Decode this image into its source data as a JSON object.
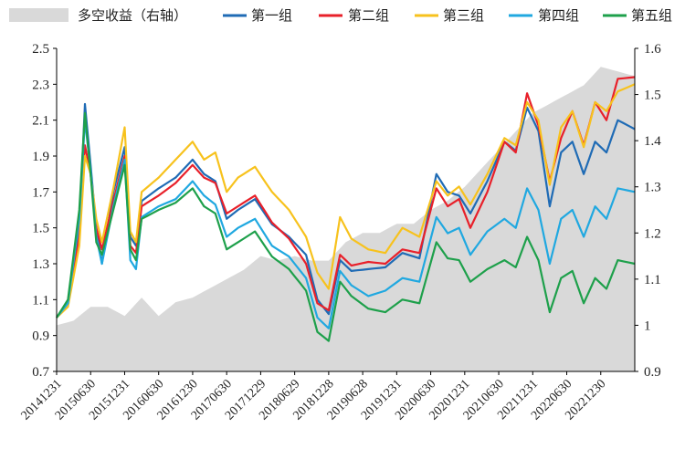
{
  "chart_data": {
    "type": "line",
    "legend": {
      "position": "top",
      "items": [
        {
          "label": "多空收益（右轴）",
          "color": "#d9d9d9",
          "kind": "area"
        },
        {
          "label": "第一组",
          "color": "#1f6bb5",
          "kind": "line"
        },
        {
          "label": "第二组",
          "color": "#e8202a",
          "kind": "line"
        },
        {
          "label": "第三组",
          "color": "#f7c21d",
          "kind": "line"
        },
        {
          "label": "第四组",
          "color": "#20a8e0",
          "kind": "line"
        },
        {
          "label": "第五组",
          "color": "#1ea04b",
          "kind": "line"
        }
      ]
    },
    "y_left": {
      "min": 0.7,
      "max": 2.5,
      "ticks": [
        "0.7",
        "0.9",
        "1.1",
        "1.3",
        "1.5",
        "1.7",
        "1.9",
        "2.1",
        "2.3",
        "2.5"
      ]
    },
    "y_right": {
      "min": 0.9,
      "max": 1.6,
      "ticks": [
        "0.9",
        "1",
        "1.1",
        "1.2",
        "1.3",
        "1.4",
        "1.5",
        "1.6"
      ]
    },
    "x_ticks": [
      {
        "label": "20141231",
        "idx": 0
      },
      {
        "label": "20150630",
        "idx": 6
      },
      {
        "label": "20151231",
        "idx": 12
      },
      {
        "label": "20160630",
        "idx": 18
      },
      {
        "label": "20161230",
        "idx": 24
      },
      {
        "label": "20170630",
        "idx": 30
      },
      {
        "label": "20171229",
        "idx": 36
      },
      {
        "label": "20180629",
        "idx": 42
      },
      {
        "label": "20181228",
        "idx": 48
      },
      {
        "label": "20190628",
        "idx": 54
      },
      {
        "label": "20191231",
        "idx": 60
      },
      {
        "label": "20200630",
        "idx": 66
      },
      {
        "label": "20201231",
        "idx": 72
      },
      {
        "label": "20210630",
        "idx": 78
      },
      {
        "label": "20211231",
        "idx": 84
      },
      {
        "label": "20220630",
        "idx": 90
      },
      {
        "label": "20221230",
        "idx": 96
      }
    ],
    "n_points": 103,
    "area": {
      "name": "多空收益（右轴）",
      "color": "#d9d9d9",
      "anchors": [
        [
          0,
          1.0
        ],
        [
          3,
          1.01
        ],
        [
          6,
          1.04
        ],
        [
          9,
          1.04
        ],
        [
          12,
          1.02
        ],
        [
          15,
          1.06
        ],
        [
          18,
          1.02
        ],
        [
          21,
          1.05
        ],
        [
          24,
          1.06
        ],
        [
          27,
          1.08
        ],
        [
          30,
          1.1
        ],
        [
          33,
          1.12
        ],
        [
          36,
          1.15
        ],
        [
          39,
          1.14
        ],
        [
          42,
          1.15
        ],
        [
          45,
          1.14
        ],
        [
          48,
          1.14
        ],
        [
          51,
          1.18
        ],
        [
          54,
          1.2
        ],
        [
          57,
          1.2
        ],
        [
          60,
          1.22
        ],
        [
          63,
          1.22
        ],
        [
          66,
          1.25
        ],
        [
          69,
          1.27
        ],
        [
          72,
          1.3
        ],
        [
          75,
          1.34
        ],
        [
          78,
          1.38
        ],
        [
          81,
          1.42
        ],
        [
          84,
          1.46
        ],
        [
          87,
          1.48
        ],
        [
          90,
          1.5
        ],
        [
          93,
          1.52
        ],
        [
          96,
          1.56
        ],
        [
          99,
          1.55
        ],
        [
          102,
          1.54
        ]
      ]
    },
    "series": [
      {
        "name": "第一组",
        "color": "#1f6bb5",
        "anchors": [
          [
            0,
            1.0
          ],
          [
            2,
            1.08
          ],
          [
            4,
            1.5
          ],
          [
            5,
            2.19
          ],
          [
            6,
            1.85
          ],
          [
            7,
            1.5
          ],
          [
            8,
            1.3
          ],
          [
            10,
            1.7
          ],
          [
            12,
            1.95
          ],
          [
            13,
            1.45
          ],
          [
            14,
            1.4
          ],
          [
            15,
            1.65
          ],
          [
            18,
            1.72
          ],
          [
            21,
            1.78
          ],
          [
            24,
            1.88
          ],
          [
            26,
            1.8
          ],
          [
            28,
            1.76
          ],
          [
            30,
            1.55
          ],
          [
            32,
            1.6
          ],
          [
            35,
            1.66
          ],
          [
            38,
            1.52
          ],
          [
            41,
            1.45
          ],
          [
            44,
            1.35
          ],
          [
            46,
            1.1
          ],
          [
            48,
            1.02
          ],
          [
            50,
            1.32
          ],
          [
            52,
            1.26
          ],
          [
            55,
            1.27
          ],
          [
            58,
            1.28
          ],
          [
            61,
            1.36
          ],
          [
            64,
            1.33
          ],
          [
            67,
            1.8
          ],
          [
            69,
            1.7
          ],
          [
            71,
            1.68
          ],
          [
            73,
            1.58
          ],
          [
            76,
            1.76
          ],
          [
            79,
            1.98
          ],
          [
            81,
            1.93
          ],
          [
            83,
            2.17
          ],
          [
            85,
            2.04
          ],
          [
            87,
            1.62
          ],
          [
            89,
            1.92
          ],
          [
            91,
            1.98
          ],
          [
            93,
            1.8
          ],
          [
            95,
            1.98
          ],
          [
            97,
            1.92
          ],
          [
            99,
            2.1
          ],
          [
            102,
            2.05
          ]
        ]
      },
      {
        "name": "第二组",
        "color": "#e8202a",
        "anchors": [
          [
            0,
            1.0
          ],
          [
            2,
            1.08
          ],
          [
            4,
            1.45
          ],
          [
            5,
            1.96
          ],
          [
            6,
            1.8
          ],
          [
            7,
            1.5
          ],
          [
            8,
            1.38
          ],
          [
            10,
            1.65
          ],
          [
            12,
            1.9
          ],
          [
            13,
            1.4
          ],
          [
            14,
            1.36
          ],
          [
            15,
            1.62
          ],
          [
            18,
            1.68
          ],
          [
            21,
            1.75
          ],
          [
            24,
            1.85
          ],
          [
            26,
            1.78
          ],
          [
            28,
            1.75
          ],
          [
            30,
            1.58
          ],
          [
            32,
            1.62
          ],
          [
            35,
            1.68
          ],
          [
            38,
            1.53
          ],
          [
            41,
            1.44
          ],
          [
            44,
            1.3
          ],
          [
            46,
            1.08
          ],
          [
            48,
            1.04
          ],
          [
            50,
            1.35
          ],
          [
            52,
            1.29
          ],
          [
            55,
            1.31
          ],
          [
            58,
            1.3
          ],
          [
            61,
            1.38
          ],
          [
            64,
            1.36
          ],
          [
            67,
            1.72
          ],
          [
            69,
            1.62
          ],
          [
            71,
            1.66
          ],
          [
            73,
            1.5
          ],
          [
            76,
            1.7
          ],
          [
            79,
            1.98
          ],
          [
            81,
            1.92
          ],
          [
            83,
            2.25
          ],
          [
            85,
            2.07
          ],
          [
            87,
            1.76
          ],
          [
            89,
            2.0
          ],
          [
            91,
            2.15
          ],
          [
            93,
            1.96
          ],
          [
            95,
            2.2
          ],
          [
            97,
            2.1
          ],
          [
            99,
            2.33
          ],
          [
            102,
            2.34
          ]
        ]
      },
      {
        "name": "第三组",
        "color": "#f7c21d",
        "anchors": [
          [
            0,
            1.0
          ],
          [
            2,
            1.06
          ],
          [
            4,
            1.4
          ],
          [
            5,
            1.9
          ],
          [
            6,
            1.8
          ],
          [
            7,
            1.55
          ],
          [
            8,
            1.42
          ],
          [
            10,
            1.72
          ],
          [
            12,
            2.06
          ],
          [
            13,
            1.48
          ],
          [
            14,
            1.42
          ],
          [
            15,
            1.7
          ],
          [
            18,
            1.78
          ],
          [
            21,
            1.88
          ],
          [
            24,
            1.98
          ],
          [
            26,
            1.88
          ],
          [
            28,
            1.92
          ],
          [
            30,
            1.7
          ],
          [
            32,
            1.78
          ],
          [
            35,
            1.84
          ],
          [
            38,
            1.7
          ],
          [
            41,
            1.6
          ],
          [
            44,
            1.45
          ],
          [
            46,
            1.25
          ],
          [
            48,
            1.16
          ],
          [
            50,
            1.56
          ],
          [
            52,
            1.44
          ],
          [
            55,
            1.38
          ],
          [
            58,
            1.36
          ],
          [
            61,
            1.5
          ],
          [
            64,
            1.45
          ],
          [
            67,
            1.76
          ],
          [
            69,
            1.68
          ],
          [
            71,
            1.73
          ],
          [
            73,
            1.63
          ],
          [
            76,
            1.8
          ],
          [
            79,
            2.0
          ],
          [
            81,
            1.96
          ],
          [
            83,
            2.2
          ],
          [
            85,
            2.1
          ],
          [
            87,
            1.74
          ],
          [
            89,
            2.06
          ],
          [
            91,
            2.15
          ],
          [
            93,
            1.95
          ],
          [
            95,
            2.2
          ],
          [
            97,
            2.15
          ],
          [
            99,
            2.26
          ],
          [
            102,
            2.3
          ]
        ]
      },
      {
        "name": "第四组",
        "color": "#20a8e0",
        "anchors": [
          [
            0,
            1.0
          ],
          [
            2,
            1.08
          ],
          [
            4,
            1.55
          ],
          [
            5,
            2.1
          ],
          [
            6,
            1.82
          ],
          [
            7,
            1.45
          ],
          [
            8,
            1.3
          ],
          [
            10,
            1.62
          ],
          [
            12,
            1.88
          ],
          [
            13,
            1.32
          ],
          [
            14,
            1.27
          ],
          [
            15,
            1.56
          ],
          [
            18,
            1.62
          ],
          [
            21,
            1.66
          ],
          [
            24,
            1.76
          ],
          [
            26,
            1.68
          ],
          [
            28,
            1.63
          ],
          [
            30,
            1.45
          ],
          [
            32,
            1.5
          ],
          [
            35,
            1.55
          ],
          [
            38,
            1.4
          ],
          [
            41,
            1.34
          ],
          [
            44,
            1.22
          ],
          [
            46,
            1.0
          ],
          [
            48,
            0.94
          ],
          [
            50,
            1.26
          ],
          [
            52,
            1.18
          ],
          [
            55,
            1.12
          ],
          [
            58,
            1.15
          ],
          [
            61,
            1.22
          ],
          [
            64,
            1.2
          ],
          [
            67,
            1.56
          ],
          [
            69,
            1.47
          ],
          [
            71,
            1.5
          ],
          [
            73,
            1.35
          ],
          [
            76,
            1.48
          ],
          [
            79,
            1.55
          ],
          [
            81,
            1.5
          ],
          [
            83,
            1.72
          ],
          [
            85,
            1.6
          ],
          [
            87,
            1.3
          ],
          [
            89,
            1.55
          ],
          [
            91,
            1.6
          ],
          [
            93,
            1.45
          ],
          [
            95,
            1.62
          ],
          [
            97,
            1.55
          ],
          [
            99,
            1.72
          ],
          [
            102,
            1.7
          ]
        ]
      },
      {
        "name": "第五组",
        "color": "#1ea04b",
        "anchors": [
          [
            0,
            1.0
          ],
          [
            2,
            1.1
          ],
          [
            4,
            1.6
          ],
          [
            5,
            2.14
          ],
          [
            6,
            1.8
          ],
          [
            7,
            1.42
          ],
          [
            8,
            1.35
          ],
          [
            10,
            1.6
          ],
          [
            12,
            1.85
          ],
          [
            13,
            1.38
          ],
          [
            14,
            1.32
          ],
          [
            15,
            1.55
          ],
          [
            18,
            1.6
          ],
          [
            21,
            1.64
          ],
          [
            24,
            1.72
          ],
          [
            26,
            1.62
          ],
          [
            28,
            1.58
          ],
          [
            30,
            1.38
          ],
          [
            32,
            1.42
          ],
          [
            35,
            1.48
          ],
          [
            38,
            1.34
          ],
          [
            41,
            1.27
          ],
          [
            44,
            1.15
          ],
          [
            46,
            0.92
          ],
          [
            48,
            0.87
          ],
          [
            50,
            1.2
          ],
          [
            52,
            1.12
          ],
          [
            55,
            1.05
          ],
          [
            58,
            1.03
          ],
          [
            61,
            1.1
          ],
          [
            64,
            1.08
          ],
          [
            67,
            1.42
          ],
          [
            69,
            1.33
          ],
          [
            71,
            1.32
          ],
          [
            73,
            1.2
          ],
          [
            76,
            1.27
          ],
          [
            79,
            1.32
          ],
          [
            81,
            1.28
          ],
          [
            83,
            1.45
          ],
          [
            85,
            1.32
          ],
          [
            87,
            1.03
          ],
          [
            89,
            1.22
          ],
          [
            91,
            1.26
          ],
          [
            93,
            1.08
          ],
          [
            95,
            1.22
          ],
          [
            97,
            1.16
          ],
          [
            99,
            1.32
          ],
          [
            102,
            1.3
          ]
        ]
      }
    ]
  }
}
